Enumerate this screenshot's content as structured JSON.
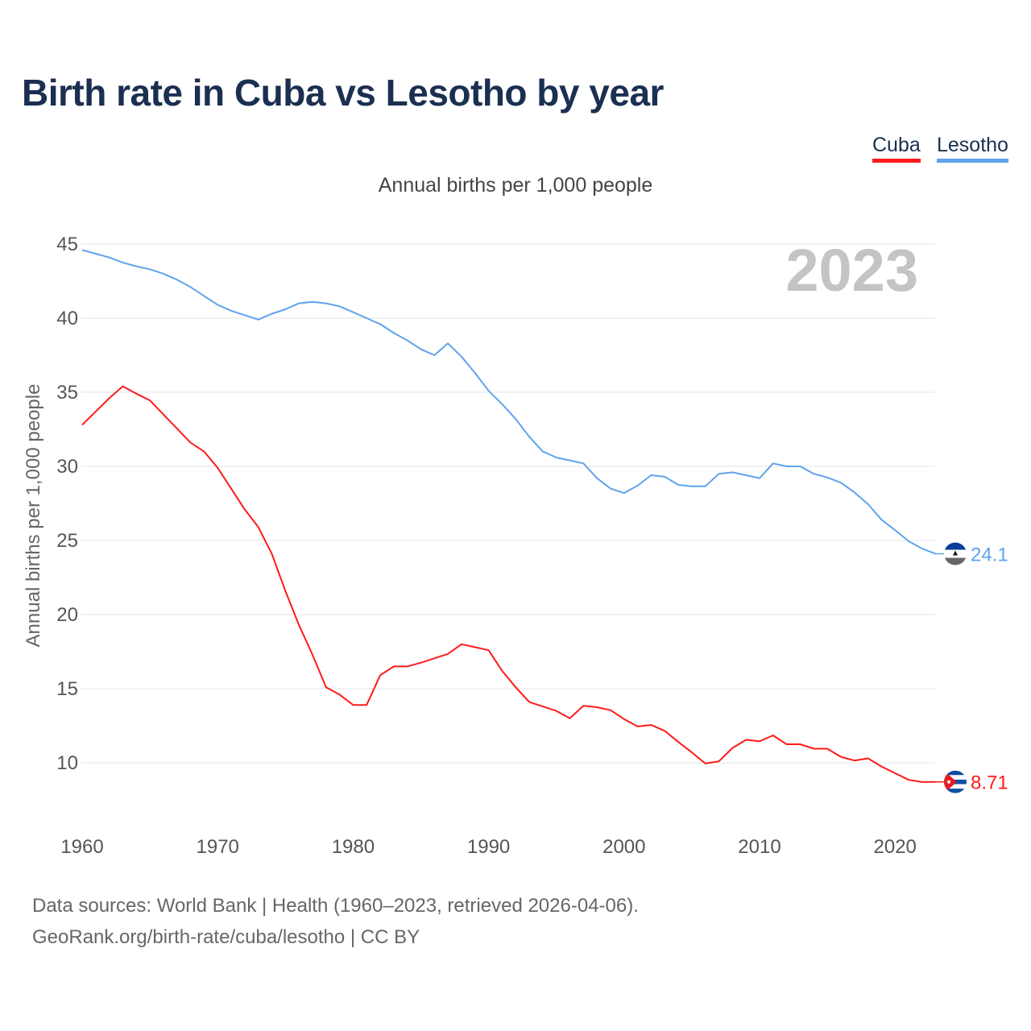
{
  "title": "Birth rate in Cuba vs Lesotho by year",
  "legend": [
    {
      "label": "Cuba",
      "color": "#ff1a1a"
    },
    {
      "label": "Lesotho",
      "color": "#5fa3ec"
    }
  ],
  "subtitle": "Annual births per 1,000 people",
  "footer": {
    "line1": "Data sources: World Bank | Health (1960–2023, retrieved 2026-04-06).",
    "line2": "GeoRank.org/birth-rate/cuba/lesotho | CC BY"
  },
  "chart_data": {
    "type": "line",
    "title": "Birth rate in Cuba vs Lesotho by year",
    "ylabel": "Annual births per 1,000 people",
    "xlabel": "",
    "year_label": "2023",
    "xlim": [
      1960,
      2023
    ],
    "ylim": [
      7,
      45
    ],
    "xticks": [
      1960,
      1970,
      1980,
      1990,
      2000,
      2010,
      2020
    ],
    "yticks": [
      10,
      15,
      20,
      25,
      30,
      35,
      40,
      45
    ],
    "grid": true,
    "legend_position": "top-right",
    "x_start": 1960,
    "series": [
      {
        "name": "Cuba",
        "color": "#ff1a1a",
        "end_label": "8.71",
        "flag": "cuba-flag",
        "values": [
          32.8,
          33.7,
          34.6,
          35.4,
          34.9,
          34.45,
          33.5,
          32.55,
          31.6,
          31.0,
          29.9,
          28.5,
          27.1,
          25.9,
          24.1,
          21.6,
          19.3,
          17.3,
          15.1,
          14.6,
          13.9,
          13.9,
          15.9,
          16.5,
          16.5,
          16.75,
          17.05,
          17.35,
          18.0,
          17.8,
          17.6,
          16.2,
          15.1,
          14.1,
          13.8,
          13.5,
          13.0,
          13.85,
          13.75,
          13.55,
          12.95,
          12.45,
          12.55,
          12.15,
          11.4,
          10.7,
          9.95,
          10.1,
          11.0,
          11.55,
          11.45,
          11.85,
          11.25,
          11.25,
          10.95,
          10.95,
          10.4,
          10.15,
          10.3,
          9.75,
          9.3,
          8.85,
          8.7,
          8.71
        ]
      },
      {
        "name": "Lesotho",
        "color": "#5fa3ec",
        "end_label": "24.1",
        "flag": "lesotho-flag",
        "values": [
          44.6,
          44.35,
          44.1,
          43.75,
          43.5,
          43.3,
          43.0,
          42.6,
          42.1,
          41.5,
          40.9,
          40.5,
          40.2,
          39.9,
          40.3,
          40.6,
          41.0,
          41.1,
          41.0,
          40.8,
          40.4,
          40.0,
          39.6,
          39.0,
          38.5,
          37.9,
          37.5,
          38.3,
          37.4,
          36.3,
          35.1,
          34.2,
          33.2,
          32.0,
          31.0,
          30.6,
          30.4,
          30.2,
          29.2,
          28.5,
          28.2,
          28.7,
          29.4,
          29.3,
          28.75,
          28.65,
          28.65,
          29.5,
          29.6,
          29.4,
          29.2,
          30.2,
          30.0,
          30.0,
          29.5,
          29.25,
          28.9,
          28.25,
          27.45,
          26.4,
          25.7,
          24.95,
          24.45,
          24.1
        ]
      }
    ]
  }
}
